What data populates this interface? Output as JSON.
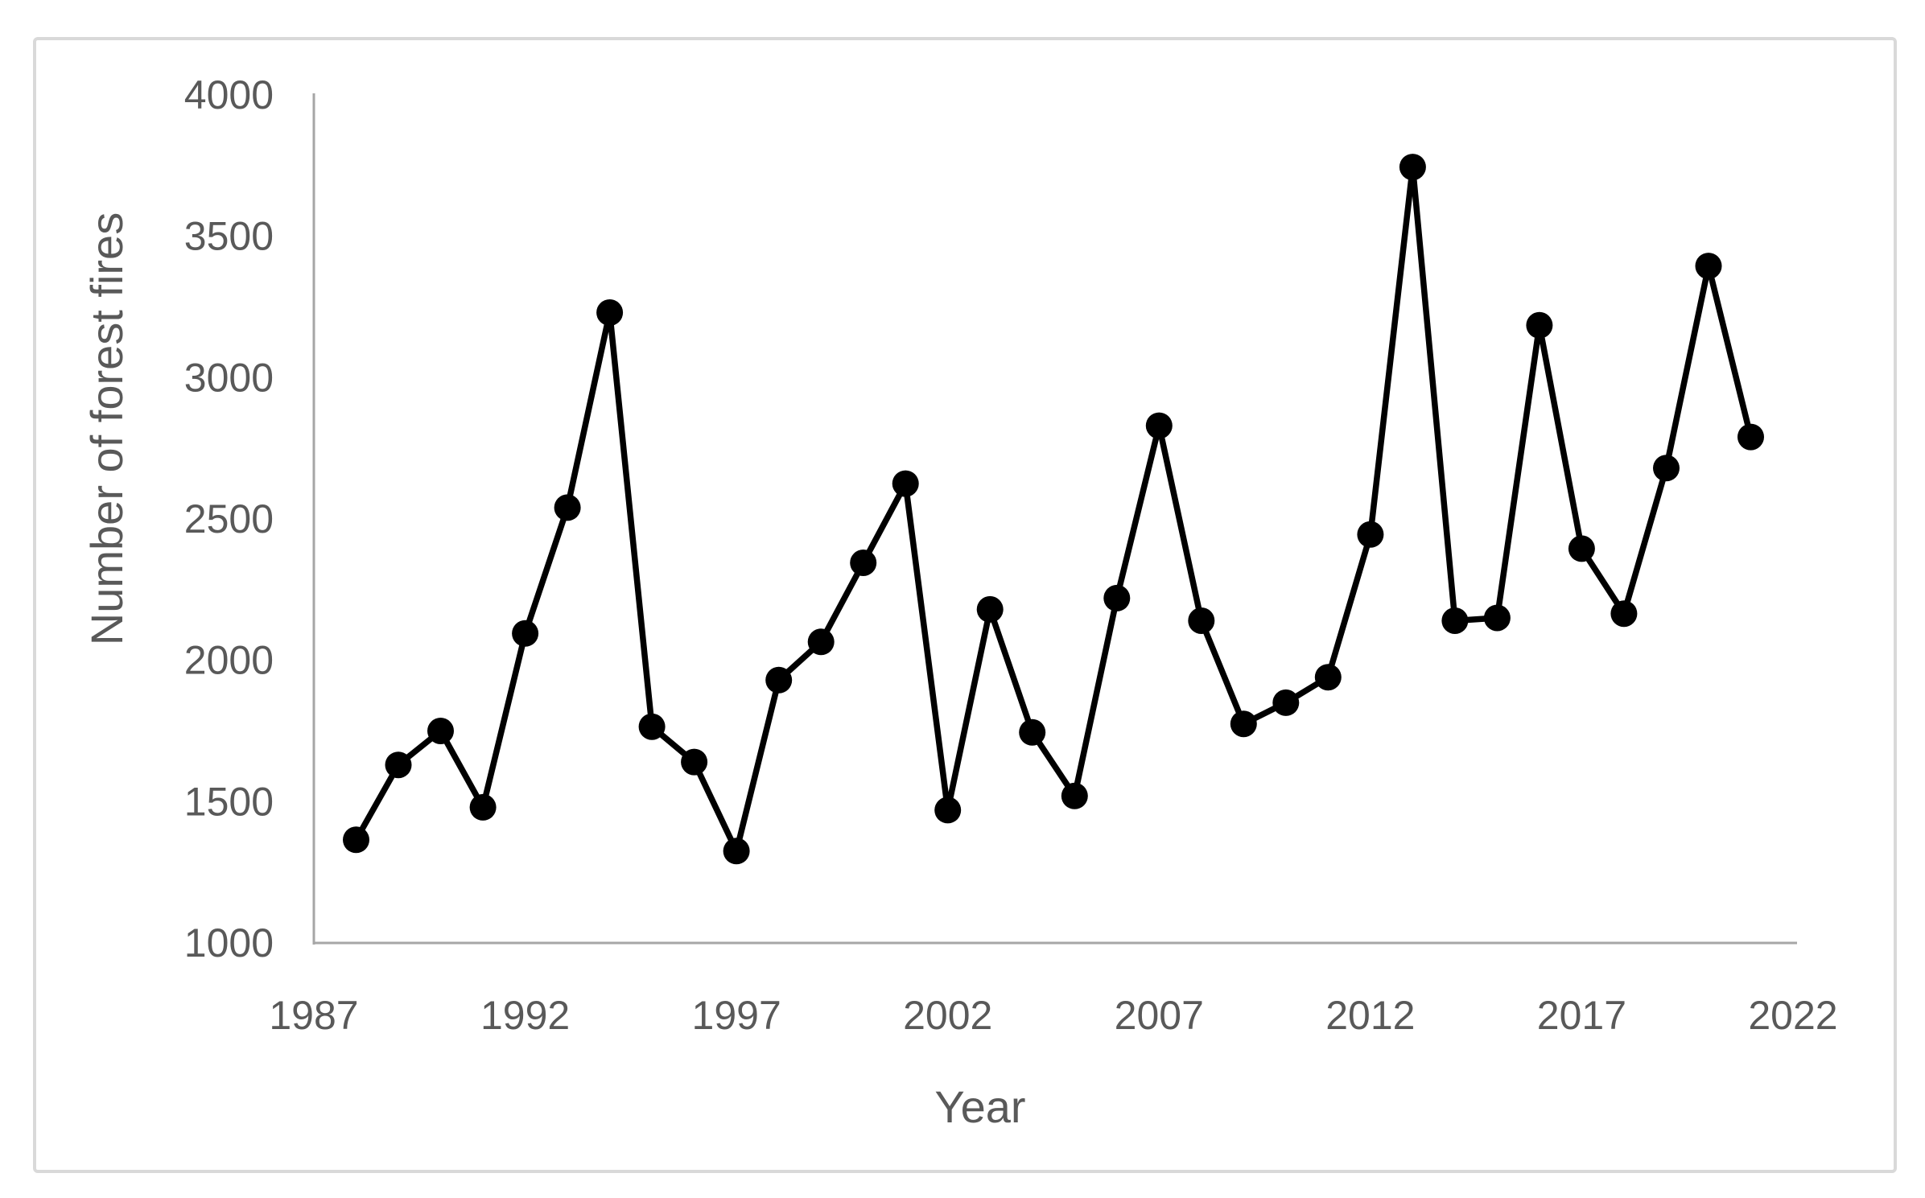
{
  "figure": {
    "kind": "excel-style line chart",
    "background_color": "#ffffff",
    "frame_color": "#d9d9d9"
  },
  "chart_data": {
    "type": "line",
    "title": "",
    "xlabel": "Year",
    "ylabel": "Number of forest fires",
    "x": [
      1988,
      1989,
      1990,
      1991,
      1992,
      1993,
      1994,
      1995,
      1996,
      1997,
      1998,
      1999,
      2000,
      2001,
      2002,
      2003,
      2004,
      2005,
      2006,
      2007,
      2008,
      2009,
      2010,
      2011,
      2012,
      2013,
      2014,
      2015,
      2016,
      2017,
      2018,
      2019,
      2020,
      2021
    ],
    "series": [
      {
        "name": "Number of forest fires",
        "values": [
          1365,
          1630,
          1750,
          1480,
          2095,
          2540,
          3230,
          1765,
          1640,
          1325,
          1930,
          2065,
          2345,
          2625,
          1470,
          2180,
          1745,
          1520,
          2220,
          2830,
          2140,
          1775,
          1850,
          1940,
          2445,
          3745,
          2140,
          2150,
          3185,
          2395,
          2165,
          2680,
          3395,
          2790
        ]
      }
    ],
    "x_ticks": [
      1987,
      1992,
      1997,
      2002,
      2007,
      2012,
      2017,
      2022
    ],
    "y_ticks": [
      1000,
      1500,
      2000,
      2500,
      3000,
      3500,
      4000
    ],
    "xlim": [
      1987,
      2022
    ],
    "ylim": [
      1000,
      4000
    ],
    "grid": false,
    "legend": "none",
    "marker": "circle",
    "line_color": "#000000",
    "marker_color": "#000000",
    "text_color": "#595959",
    "axis_color": "#a6a6a6"
  }
}
